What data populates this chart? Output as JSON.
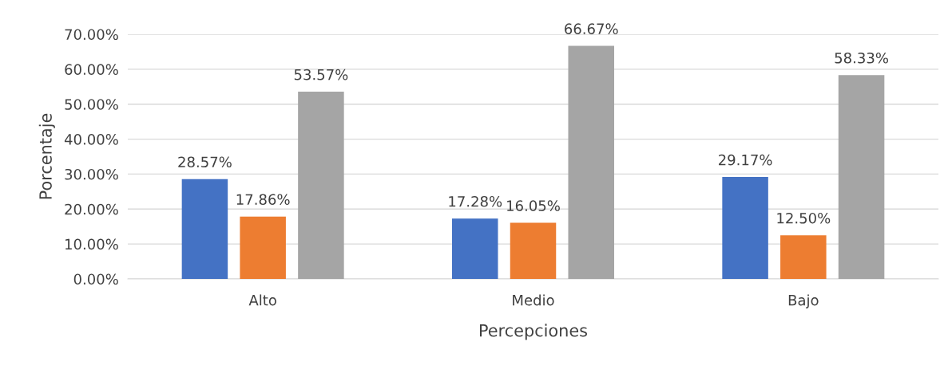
{
  "chart_data": {
    "type": "bar",
    "xlabel": "Percepciones",
    "ylabel": "Porcentaje",
    "categories": [
      "Alto",
      "Medio",
      "Bajo"
    ],
    "series": [
      {
        "color": "#4472c4",
        "values": [
          28.57,
          17.28,
          29.17
        ],
        "value_labels": [
          "28.57%",
          "17.28%",
          "29.17%"
        ]
      },
      {
        "color": "#ed7d31",
        "values": [
          17.86,
          16.05,
          12.5
        ],
        "value_labels": [
          "17.86%",
          "16.05%",
          "12.50%"
        ]
      },
      {
        "color": "#a5a5a5",
        "values": [
          53.57,
          66.67,
          58.33
        ],
        "value_labels": [
          "53.57%",
          "66.67%",
          "58.33%"
        ]
      }
    ],
    "ylim": [
      0,
      70
    ],
    "yticks": [
      {
        "value": 0,
        "label": "0.00%"
      },
      {
        "value": 10,
        "label": "10.00%"
      },
      {
        "value": 20,
        "label": "20.00%"
      },
      {
        "value": 30,
        "label": "30.00%"
      },
      {
        "value": 40,
        "label": "40.00%"
      },
      {
        "value": 50,
        "label": "50.00%"
      },
      {
        "value": 60,
        "label": "60.00%"
      },
      {
        "value": 70,
        "label": "70.00%"
      }
    ],
    "grid": "y"
  }
}
